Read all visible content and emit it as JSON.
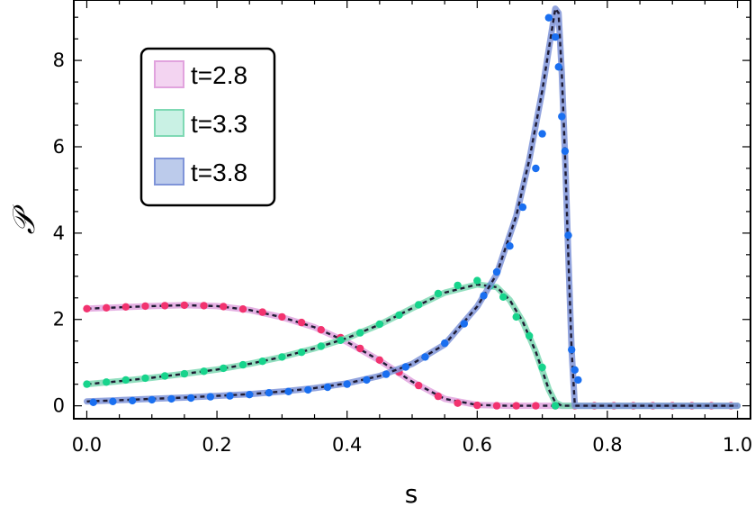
{
  "chart_data": {
    "type": "line",
    "xlabel": "s",
    "ylabel": "𝒫",
    "xlim": [
      -0.02,
      1.02
    ],
    "ylim": [
      -0.3,
      9.4
    ],
    "x_ticks": [
      "0.0",
      "0.2",
      "0.4",
      "0.6",
      "0.8",
      "1.0"
    ],
    "y_ticks": [
      "0",
      "2",
      "4",
      "6",
      "8"
    ],
    "grid": false,
    "legend_position": "top-left",
    "series": [
      {
        "name": "t=2.8",
        "fill_color": "#f3d4f1",
        "curve_color": "#e1a3de",
        "point_color": "#f2336f",
        "curve": [
          [
            0.0,
            2.25
          ],
          [
            0.05,
            2.28
          ],
          [
            0.1,
            2.31
          ],
          [
            0.15,
            2.33
          ],
          [
            0.2,
            2.31
          ],
          [
            0.25,
            2.22
          ],
          [
            0.3,
            2.05
          ],
          [
            0.35,
            1.82
          ],
          [
            0.4,
            1.48
          ],
          [
            0.45,
            1.05
          ],
          [
            0.5,
            0.56
          ],
          [
            0.55,
            0.16
          ],
          [
            0.6,
            0.02
          ],
          [
            0.65,
            0.0
          ],
          [
            0.7,
            0.0
          ],
          [
            0.8,
            0.0
          ],
          [
            0.9,
            0.0
          ],
          [
            1.0,
            0.0
          ]
        ],
        "points": [
          [
            0.0,
            2.25
          ],
          [
            0.03,
            2.27
          ],
          [
            0.06,
            2.29
          ],
          [
            0.09,
            2.31
          ],
          [
            0.12,
            2.32
          ],
          [
            0.15,
            2.33
          ],
          [
            0.18,
            2.32
          ],
          [
            0.21,
            2.3
          ],
          [
            0.24,
            2.24
          ],
          [
            0.27,
            2.17
          ],
          [
            0.3,
            2.06
          ],
          [
            0.33,
            1.93
          ],
          [
            0.36,
            1.76
          ],
          [
            0.39,
            1.58
          ],
          [
            0.42,
            1.33
          ],
          [
            0.45,
            1.06
          ],
          [
            0.48,
            0.78
          ],
          [
            0.51,
            0.47
          ],
          [
            0.54,
            0.22
          ],
          [
            0.57,
            0.06
          ],
          [
            0.6,
            0.01
          ],
          [
            0.63,
            0.0
          ],
          [
            0.66,
            0.0
          ],
          [
            0.69,
            0.0
          ],
          [
            0.72,
            0.0
          ],
          [
            0.75,
            0.0
          ],
          [
            0.78,
            0.0
          ],
          [
            0.81,
            0.0
          ],
          [
            0.84,
            0.0
          ],
          [
            0.87,
            0.0
          ],
          [
            0.9,
            0.0
          ],
          [
            0.93,
            0.0
          ],
          [
            0.96,
            0.0
          ],
          [
            0.99,
            0.0
          ]
        ]
      },
      {
        "name": "t=3.3",
        "fill_color": "#c9f1e4",
        "curve_color": "#7fd9b4",
        "point_color": "#17d48c",
        "curve": [
          [
            0.0,
            0.5
          ],
          [
            0.05,
            0.57
          ],
          [
            0.1,
            0.65
          ],
          [
            0.15,
            0.74
          ],
          [
            0.2,
            0.84
          ],
          [
            0.25,
            0.97
          ],
          [
            0.3,
            1.13
          ],
          [
            0.35,
            1.33
          ],
          [
            0.4,
            1.57
          ],
          [
            0.45,
            1.88
          ],
          [
            0.5,
            2.26
          ],
          [
            0.55,
            2.62
          ],
          [
            0.6,
            2.81
          ],
          [
            0.63,
            2.75
          ],
          [
            0.65,
            2.45
          ],
          [
            0.67,
            1.95
          ],
          [
            0.69,
            1.25
          ],
          [
            0.7,
            0.82
          ],
          [
            0.71,
            0.38
          ],
          [
            0.72,
            0.08
          ],
          [
            0.73,
            0.0
          ],
          [
            0.8,
            0.0
          ],
          [
            1.0,
            0.0
          ]
        ],
        "points": [
          [
            0.0,
            0.5
          ],
          [
            0.03,
            0.55
          ],
          [
            0.06,
            0.6
          ],
          [
            0.09,
            0.64
          ],
          [
            0.12,
            0.69
          ],
          [
            0.15,
            0.74
          ],
          [
            0.18,
            0.8
          ],
          [
            0.21,
            0.87
          ],
          [
            0.24,
            0.95
          ],
          [
            0.27,
            1.03
          ],
          [
            0.3,
            1.13
          ],
          [
            0.33,
            1.24
          ],
          [
            0.36,
            1.38
          ],
          [
            0.39,
            1.52
          ],
          [
            0.42,
            1.69
          ],
          [
            0.45,
            1.89
          ],
          [
            0.48,
            2.1
          ],
          [
            0.51,
            2.34
          ],
          [
            0.54,
            2.6
          ],
          [
            0.57,
            2.79
          ],
          [
            0.6,
            2.9
          ],
          [
            0.62,
            2.78
          ],
          [
            0.64,
            2.52
          ],
          [
            0.66,
            2.06
          ],
          [
            0.68,
            1.62
          ],
          [
            0.7,
            0.89
          ],
          [
            0.72,
            0.0
          ]
        ]
      },
      {
        "name": "t=3.8",
        "fill_color": "#bccbeb",
        "curve_color": "#7f94d8",
        "point_color": "#1a6ff0",
        "curve": [
          [
            0.0,
            0.1
          ],
          [
            0.05,
            0.13
          ],
          [
            0.1,
            0.16
          ],
          [
            0.15,
            0.19
          ],
          [
            0.2,
            0.23
          ],
          [
            0.25,
            0.27
          ],
          [
            0.3,
            0.33
          ],
          [
            0.35,
            0.41
          ],
          [
            0.4,
            0.52
          ],
          [
            0.45,
            0.69
          ],
          [
            0.5,
            0.97
          ],
          [
            0.55,
            1.42
          ],
          [
            0.6,
            2.3
          ],
          [
            0.63,
            3.05
          ],
          [
            0.66,
            4.4
          ],
          [
            0.68,
            5.7
          ],
          [
            0.7,
            7.3
          ],
          [
            0.71,
            8.25
          ],
          [
            0.72,
            9.2
          ],
          [
            0.725,
            9.1
          ],
          [
            0.73,
            7.7
          ],
          [
            0.735,
            5.8
          ],
          [
            0.74,
            3.5
          ],
          [
            0.745,
            1.3
          ],
          [
            0.75,
            0.0
          ],
          [
            0.8,
            0.0
          ],
          [
            1.0,
            0.0
          ]
        ],
        "points": [
          [
            0.01,
            0.08
          ],
          [
            0.04,
            0.1
          ],
          [
            0.07,
            0.12
          ],
          [
            0.1,
            0.14
          ],
          [
            0.13,
            0.16
          ],
          [
            0.16,
            0.18
          ],
          [
            0.19,
            0.21
          ],
          [
            0.22,
            0.23
          ],
          [
            0.25,
            0.26
          ],
          [
            0.28,
            0.3
          ],
          [
            0.31,
            0.33
          ],
          [
            0.34,
            0.37
          ],
          [
            0.37,
            0.43
          ],
          [
            0.4,
            0.5
          ],
          [
            0.43,
            0.6
          ],
          [
            0.46,
            0.73
          ],
          [
            0.49,
            0.9
          ],
          [
            0.52,
            1.13
          ],
          [
            0.55,
            1.45
          ],
          [
            0.58,
            1.9
          ],
          [
            0.61,
            2.55
          ],
          [
            0.63,
            3.1
          ],
          [
            0.65,
            3.7
          ],
          [
            0.67,
            4.6
          ],
          [
            0.69,
            5.5
          ],
          [
            0.7,
            6.3
          ],
          [
            0.71,
            8.99
          ],
          [
            0.72,
            8.54
          ],
          [
            0.725,
            7.85
          ],
          [
            0.73,
            6.7
          ],
          [
            0.735,
            5.9
          ],
          [
            0.74,
            3.95
          ],
          [
            0.745,
            1.3
          ],
          [
            0.75,
            0.83
          ],
          [
            0.755,
            0.6
          ]
        ]
      }
    ]
  }
}
